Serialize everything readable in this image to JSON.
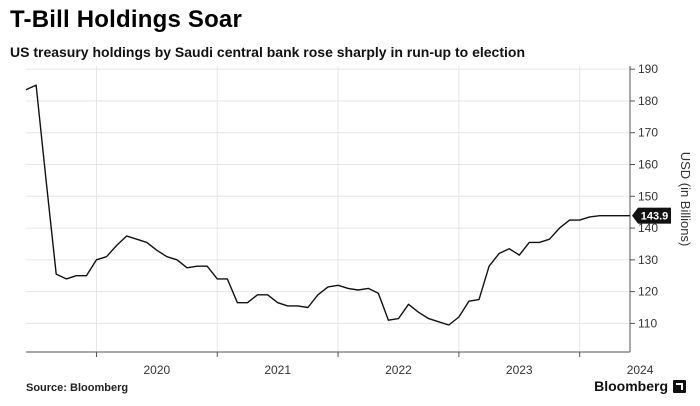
{
  "header": {
    "title": "T-Bill Holdings Soar",
    "subtitle": "US treasury holdings by Saudi central bank rose sharply in run-up to election"
  },
  "footer": {
    "source": "Source: Bloomberg",
    "brand": "Bloomberg"
  },
  "colors": {
    "line": "#111111",
    "grid": "#e6e6e6",
    "axis": "#555555",
    "last_value_bg": "#111111",
    "last_value_text": "#ffffff"
  },
  "chart_data": {
    "type": "line",
    "title": "T-Bill Holdings Soar",
    "subtitle": "US treasury holdings by Saudi central bank rose sharply in run-up to election",
    "xlabel": "",
    "ylabel": "USD (in Billions)",
    "ylim": [
      101,
      191
    ],
    "xlim": [
      "2019-06",
      "2024-06"
    ],
    "y_ticks": [
      110,
      120,
      130,
      140,
      150,
      160,
      170,
      180,
      190
    ],
    "x_tick_labels": [
      "2020",
      "2021",
      "2022",
      "2023",
      "2024"
    ],
    "y_axis_side": "right",
    "grid": true,
    "last_value_label": "143.9",
    "series": [
      {
        "name": "",
        "x": [
          "2019-06",
          "2019-07",
          "2019-08",
          "2019-09",
          "2019-10",
          "2019-11",
          "2019-12",
          "2020-01",
          "2020-02",
          "2020-03",
          "2020-04",
          "2020-05",
          "2020-06",
          "2020-07",
          "2020-08",
          "2020-09",
          "2020-10",
          "2020-11",
          "2020-12",
          "2021-01",
          "2021-02",
          "2021-03",
          "2021-04",
          "2021-05",
          "2021-06",
          "2021-07",
          "2021-08",
          "2021-09",
          "2021-10",
          "2021-11",
          "2021-12",
          "2022-01",
          "2022-02",
          "2022-03",
          "2022-04",
          "2022-05",
          "2022-06",
          "2022-07",
          "2022-08",
          "2022-09",
          "2022-10",
          "2022-11",
          "2022-12",
          "2023-01",
          "2023-02",
          "2023-03",
          "2023-04",
          "2023-05",
          "2023-06",
          "2023-07",
          "2023-08",
          "2023-09",
          "2023-10",
          "2023-11",
          "2023-12",
          "2024-01",
          "2024-02",
          "2024-03",
          "2024-04",
          "2024-05",
          "2024-06"
        ],
        "values": [
          183.5,
          185,
          155,
          125.5,
          124,
          125,
          125,
          130,
          131,
          134.5,
          137.5,
          136.5,
          135.5,
          133,
          131,
          130,
          127.5,
          128,
          128,
          124,
          124,
          116.5,
          116.5,
          119,
          119,
          116.5,
          115.5,
          115.5,
          115,
          119,
          121.5,
          122,
          121,
          120.5,
          121,
          119.5,
          111,
          111.5,
          116,
          113.5,
          111.5,
          110.5,
          109.5,
          112,
          117,
          117.5,
          128,
          132,
          133.5,
          131.5,
          135.5,
          135.5,
          136.5,
          140,
          142.5,
          142.5,
          143.5,
          143.9,
          143.9,
          143.9,
          143.9
        ]
      }
    ]
  }
}
